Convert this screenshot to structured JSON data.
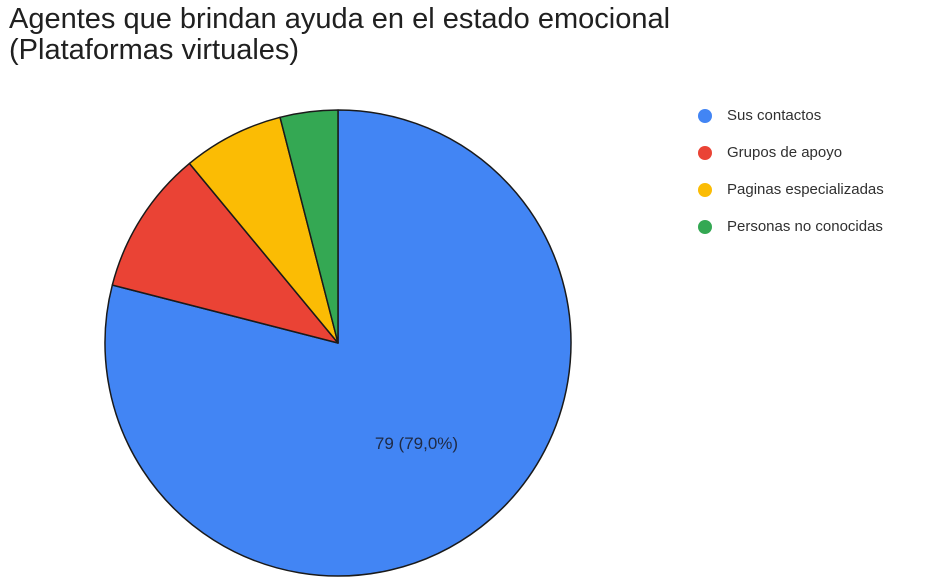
{
  "chart_data": {
    "type": "pie",
    "title": "Agentes que brindan ayuda en el estado emocional (Plataformas virtuales)",
    "title_lines": [
      "Agentes que brindan ayuda en el estado emocional",
      "(Plataformas virtuales)"
    ],
    "slices": [
      {
        "label": "Sus contactos",
        "value": 79,
        "color": "#4285F4",
        "data_label": "79 (79,0%)"
      },
      {
        "label": "Grupos de apoyo",
        "value": 10,
        "color": "#EA4335",
        "data_label": ""
      },
      {
        "label": "Paginas especializadas",
        "value": 7,
        "color": "#FBBC04",
        "data_label": ""
      },
      {
        "label": "Personas no conocidas",
        "value": 4,
        "color": "#34A853",
        "data_label": ""
      }
    ],
    "total": 100,
    "legend_position": "right",
    "slice_border_color": "#1a1a1a"
  }
}
